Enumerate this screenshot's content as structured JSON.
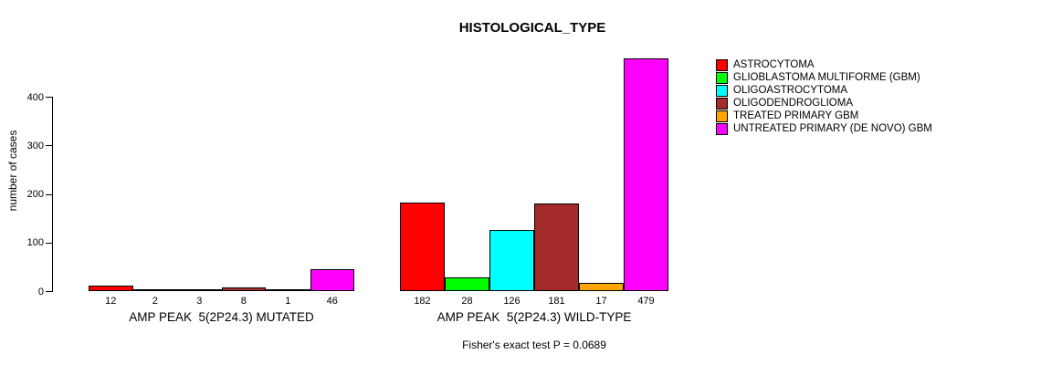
{
  "chart_data": {
    "type": "bar",
    "title": "HISTOLOGICAL_TYPE",
    "ylabel": "number of cases",
    "xlabel": "",
    "ylim": [
      0,
      479
    ],
    "yticks": [
      0,
      100,
      200,
      300,
      400
    ],
    "grid": false,
    "legend_position": "top-right",
    "annotation": "Fisher's exact test P = 0.0689",
    "groups": [
      {
        "label": "AMP PEAK  5(2P24.3) MUTATED",
        "values": [
          12,
          2,
          3,
          8,
          1,
          46
        ]
      },
      {
        "label": "AMP PEAK  5(2P24.3) WILD-TYPE",
        "values": [
          182,
          28,
          126,
          181,
          17,
          479
        ]
      }
    ],
    "series": [
      {
        "name": "ASTROCYTOMA",
        "color": "#FF0000",
        "values": [
          12,
          182
        ]
      },
      {
        "name": "GLIOBLASTOMA MULTIFORME (GBM)",
        "color": "#00FF00",
        "values": [
          2,
          28
        ]
      },
      {
        "name": "OLIGOASTROCYTOMA",
        "color": "#00FFFF",
        "values": [
          3,
          126
        ]
      },
      {
        "name": "OLIGODENDROGLIOMA",
        "color": "#A52A2A",
        "values": [
          8,
          181
        ]
      },
      {
        "name": "TREATED PRIMARY GBM",
        "color": "#FFA500",
        "values": [
          1,
          17
        ]
      },
      {
        "name": "UNTREATED PRIMARY (DE NOVO) GBM",
        "color": "#FF00FF",
        "values": [
          46,
          479
        ]
      }
    ]
  },
  "colors": {
    "background": "#FFFFFF",
    "axis": "#000000",
    "text": "#000000"
  }
}
